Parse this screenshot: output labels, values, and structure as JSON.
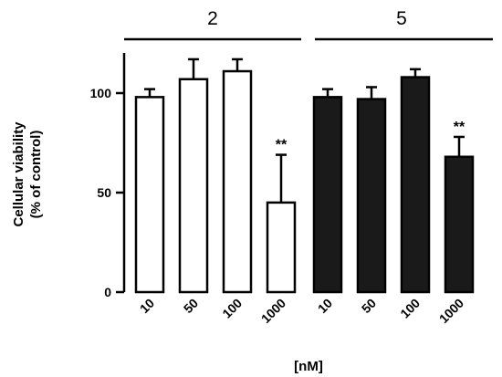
{
  "chart_data": {
    "type": "bar",
    "groups": [
      {
        "label": "2",
        "fill": "#ffffff",
        "categories": [
          "10",
          "50",
          "100",
          "1000"
        ],
        "values": [
          98,
          107,
          111,
          45
        ],
        "errors": [
          4,
          10,
          6,
          24
        ],
        "annotations": [
          "",
          "",
          "",
          "**"
        ]
      },
      {
        "label": "5",
        "fill": "#1a1a1a",
        "categories": [
          "10",
          "50",
          "100",
          "1000"
        ],
        "values": [
          98,
          97,
          108,
          68
        ],
        "errors": [
          4,
          6,
          4,
          10
        ],
        "annotations": [
          "",
          "",
          "",
          "**"
        ]
      }
    ],
    "ylabel_line1": "Cellular viability",
    "ylabel_line2": "(% of control)",
    "xlabel": "[nM]",
    "ylim": [
      0,
      120
    ],
    "yticks": [
      0,
      50,
      100
    ],
    "grid": false
  }
}
